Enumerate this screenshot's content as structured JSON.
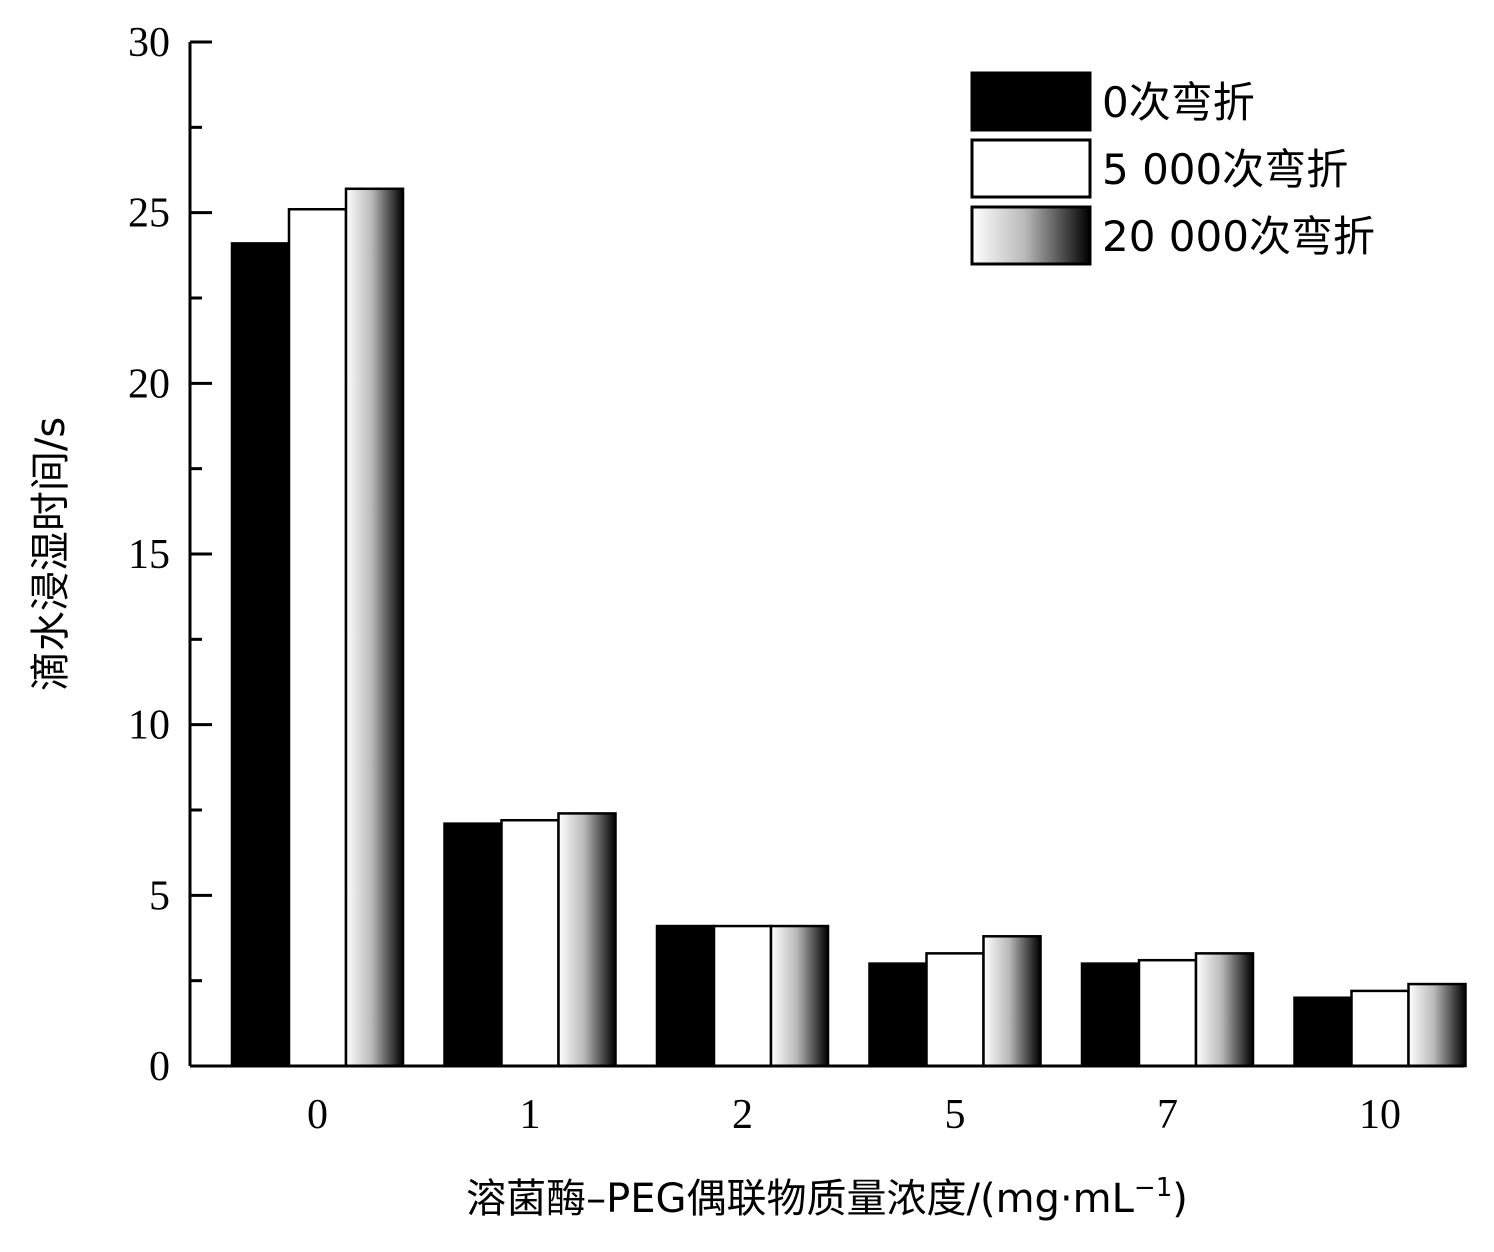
{
  "chart_data": {
    "type": "bar",
    "xlabel": "溶菌酶–PEG偶联物质量浓度/(mg·mL",
    "xlabel_sup": "−1",
    "xlabel_tail": ")",
    "ylabel": "滴水浸湿时间/s",
    "ylim": [
      0,
      30
    ],
    "yticks": [
      "0",
      "5",
      "10",
      "15",
      "20",
      "25",
      "30"
    ],
    "categories": [
      "0",
      "1",
      "2",
      "5",
      "7",
      "10"
    ],
    "series": [
      {
        "name": "0次弯折",
        "fill": "#000000",
        "values": [
          24.1,
          7.1,
          4.1,
          3.0,
          3.0,
          2.0
        ]
      },
      {
        "name": "5 000次弯折",
        "fill": "#ffffff",
        "values": [
          25.1,
          7.2,
          4.1,
          3.3,
          3.1,
          2.2
        ]
      },
      {
        "name": "20 000次弯折",
        "fill": "gradient",
        "values": [
          25.7,
          7.4,
          4.1,
          3.8,
          3.3,
          2.4
        ]
      }
    ],
    "legend_position": "top-right",
    "grid": false
  }
}
